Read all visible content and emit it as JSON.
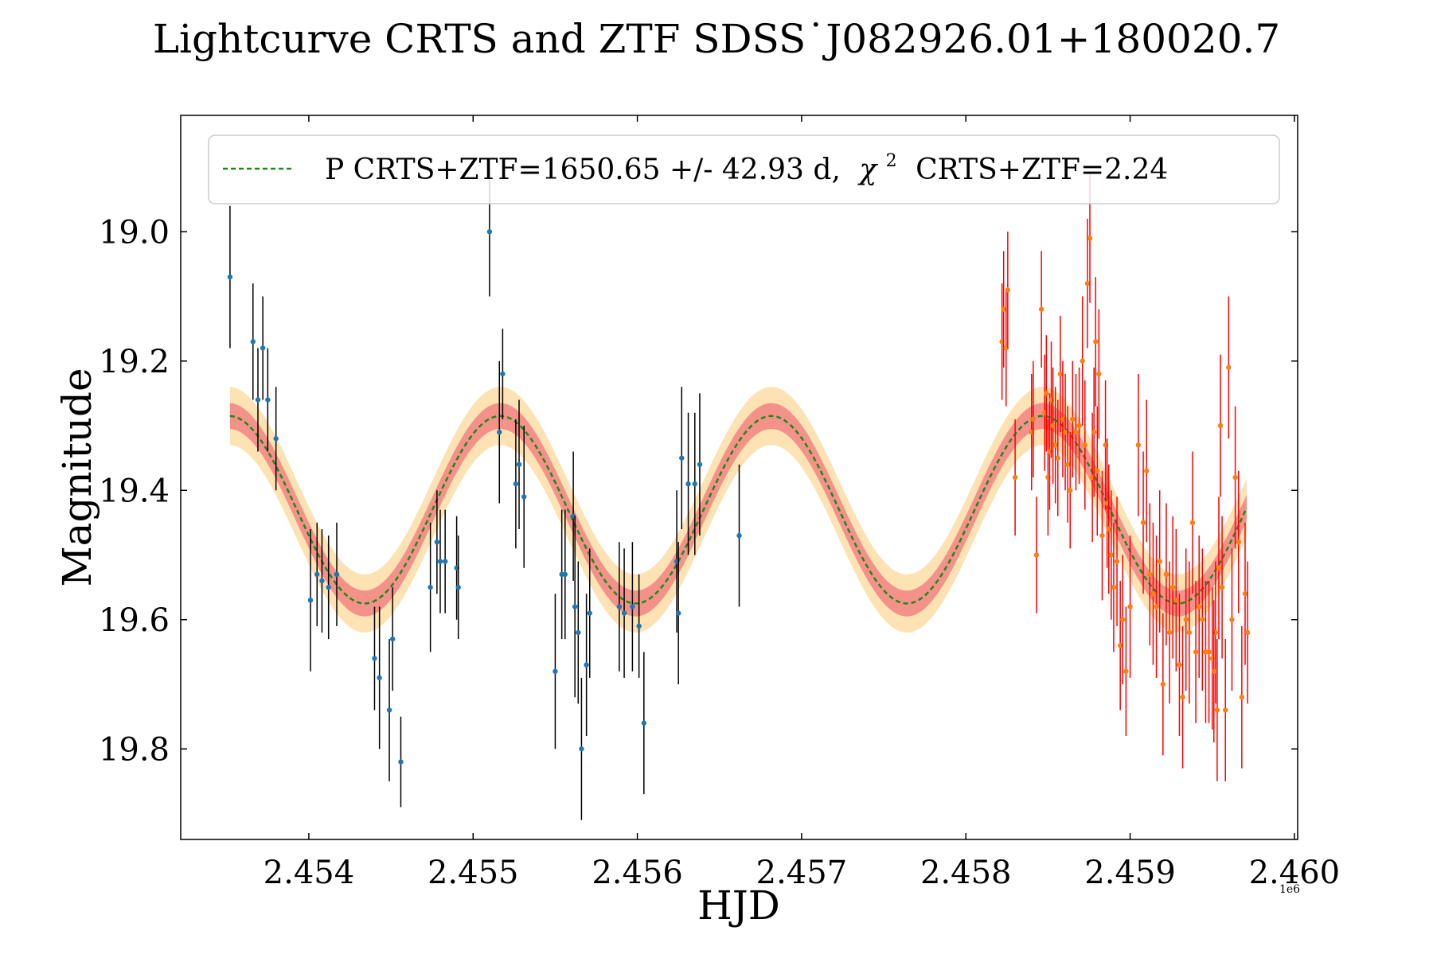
{
  "chart_data": {
    "type": "scatter",
    "title": "Lightcurve CRTS and ZTF SDSS˙J082926.01+180020.7",
    "xlabel": "HJD",
    "ylabel": "Magnitude",
    "x_offset_label": "1e6",
    "xlim": [
      2453220,
      2460020
    ],
    "ylim": [
      19.94,
      18.82
    ],
    "y_inverted": true,
    "xticks": [
      2454000,
      2455000,
      2456000,
      2457000,
      2458000,
      2459000,
      2460000
    ],
    "xtick_labels": [
      "2.454",
      "2.455",
      "2.456",
      "2.457",
      "2.458",
      "2.459",
      "2.460"
    ],
    "yticks": [
      19.0,
      19.2,
      19.4,
      19.6,
      19.8
    ],
    "ytick_labels": [
      "19.0",
      "19.2",
      "19.4",
      "19.6",
      "19.8"
    ],
    "legend": {
      "position": "top-center",
      "prefix": "P CRTS+ZTF=1650.65 +/- 42.93 d,",
      "chi": "χ",
      "chi_exp": "2",
      "suffix": "CRTS+ZTF=2.24"
    },
    "model": {
      "name": "P CRTS+ZTF=1650.65 +/- 42.93 d, χ² CRTS+ZTF=2.24",
      "type": "sinusoid",
      "period_days": 1650.65,
      "period_err_days": 42.93,
      "chi2": 2.24,
      "mean_mag": 19.43,
      "amplitude_mag": 0.145,
      "peak_hjd": 2455165,
      "x_range": [
        2453520,
        2459710
      ],
      "band_inner_mag": 0.02,
      "band_outer_mag": 0.045,
      "line_color": "#1a8a1a",
      "inner_band_color": "#f4928a",
      "outer_band_color": "#fde3b4"
    },
    "series": [
      {
        "name": "CRTS",
        "marker_color": "#1f77b4",
        "error_color": "#000000",
        "x": [
          2453520,
          2453660,
          2453690,
          2453720,
          2453750,
          2453800,
          2454010,
          2454050,
          2454080,
          2454120,
          2454170,
          2454400,
          2454430,
          2454490,
          2454510,
          2454560,
          2454740,
          2454780,
          2454800,
          2454830,
          2454900,
          2454910,
          2455100,
          2455160,
          2455180,
          2455260,
          2455280,
          2455310,
          2455500,
          2455540,
          2455560,
          2455610,
          2455620,
          2455640,
          2455660,
          2455690,
          2455710,
          2455890,
          2455920,
          2455970,
          2456010,
          2456040,
          2456240,
          2456250,
          2456270,
          2456310,
          2456350,
          2456380,
          2456620
        ],
        "y": [
          19.07,
          19.17,
          19.26,
          19.18,
          19.26,
          19.32,
          19.57,
          19.53,
          19.54,
          19.55,
          19.53,
          19.66,
          19.69,
          19.74,
          19.63,
          19.82,
          19.55,
          19.48,
          19.51,
          19.51,
          19.52,
          19.55,
          19.0,
          19.31,
          19.22,
          19.39,
          19.36,
          19.41,
          19.68,
          19.53,
          19.53,
          19.44,
          19.58,
          19.62,
          19.8,
          19.67,
          19.59,
          19.58,
          19.59,
          19.58,
          19.61,
          19.76,
          19.51,
          19.59,
          19.35,
          19.39,
          19.39,
          19.36,
          19.47
        ],
        "yerr": [
          0.11,
          0.09,
          0.08,
          0.08,
          0.08,
          0.08,
          0.11,
          0.08,
          0.08,
          0.08,
          0.08,
          0.08,
          0.11,
          0.11,
          0.08,
          0.07,
          0.1,
          0.08,
          0.08,
          0.08,
          0.08,
          0.08,
          0.1,
          0.11,
          0.07,
          0.1,
          0.1,
          0.11,
          0.12,
          0.1,
          0.1,
          0.1,
          0.14,
          0.11,
          0.11,
          0.11,
          0.1,
          0.1,
          0.1,
          0.1,
          0.08,
          0.11,
          0.11,
          0.11,
          0.11,
          0.11,
          0.11,
          0.11,
          0.11
        ]
      },
      {
        "name": "ZTF",
        "marker_color": "#ff7f0e",
        "error_color": "#ff0000",
        "x": [
          2458220,
          2458230,
          2458245,
          2458255,
          2458300,
          2458400,
          2458410,
          2458430,
          2458460,
          2458480,
          2458490,
          2458500,
          2458510,
          2458520,
          2458530,
          2458545,
          2458560,
          2458575,
          2458590,
          2458605,
          2458620,
          2458635,
          2458650,
          2458670,
          2458690,
          2458710,
          2458725,
          2458740,
          2458755,
          2458770,
          2458780,
          2458790,
          2458800,
          2458810,
          2458830,
          2458850,
          2458860,
          2458870,
          2458885,
          2458900,
          2458920,
          2458940,
          2458955,
          2458975,
          2459000,
          2459050,
          2459080,
          2459100,
          2459120,
          2459140,
          2459160,
          2459180,
          2459200,
          2459220,
          2459240,
          2459260,
          2459280,
          2459300,
          2459320,
          2459340,
          2459360,
          2459380,
          2459400,
          2459420,
          2459440,
          2459460,
          2459480,
          2459500,
          2459520,
          2459540,
          2459560,
          2459580,
          2459600,
          2459620,
          2459640,
          2459660,
          2459680,
          2459700,
          2459715,
          2459550,
          2459510,
          2459530
        ],
        "y": [
          19.17,
          19.12,
          19.18,
          19.09,
          19.38,
          19.31,
          19.29,
          19.5,
          19.12,
          19.28,
          19.25,
          19.38,
          19.34,
          19.26,
          19.3,
          19.33,
          19.35,
          19.22,
          19.29,
          19.31,
          19.36,
          19.4,
          19.29,
          19.31,
          19.3,
          19.2,
          19.33,
          19.08,
          19.01,
          19.38,
          19.31,
          19.17,
          19.37,
          19.22,
          19.47,
          19.33,
          19.42,
          19.46,
          19.5,
          19.55,
          19.51,
          19.64,
          19.6,
          19.68,
          19.58,
          19.33,
          19.45,
          19.37,
          19.53,
          19.56,
          19.58,
          19.51,
          19.7,
          19.53,
          19.62,
          19.55,
          19.57,
          19.67,
          19.72,
          19.6,
          19.62,
          19.45,
          19.65,
          19.58,
          19.6,
          19.65,
          19.65,
          19.66,
          19.62,
          19.52,
          19.55,
          19.74,
          19.21,
          19.6,
          19.38,
          19.48,
          19.72,
          19.56,
          19.62,
          19.3,
          19.68,
          19.74
        ],
        "yerr": [
          0.09,
          0.09,
          0.09,
          0.09,
          0.09,
          0.09,
          0.09,
          0.09,
          0.09,
          0.09,
          0.09,
          0.09,
          0.09,
          0.09,
          0.09,
          0.09,
          0.09,
          0.09,
          0.09,
          0.09,
          0.09,
          0.09,
          0.09,
          0.09,
          0.09,
          0.1,
          0.1,
          0.1,
          0.1,
          0.1,
          0.1,
          0.1,
          0.1,
          0.1,
          0.1,
          0.1,
          0.1,
          0.1,
          0.1,
          0.1,
          0.1,
          0.1,
          0.1,
          0.1,
          0.11,
          0.11,
          0.11,
          0.11,
          0.11,
          0.11,
          0.11,
          0.11,
          0.11,
          0.11,
          0.11,
          0.11,
          0.11,
          0.11,
          0.11,
          0.11,
          0.11,
          0.11,
          0.11,
          0.11,
          0.11,
          0.11,
          0.11,
          0.11,
          0.11,
          0.11,
          0.11,
          0.11,
          0.11,
          0.11,
          0.11,
          0.11,
          0.11,
          0.11,
          0.11,
          0.11,
          0.11,
          0.11
        ]
      }
    ]
  }
}
